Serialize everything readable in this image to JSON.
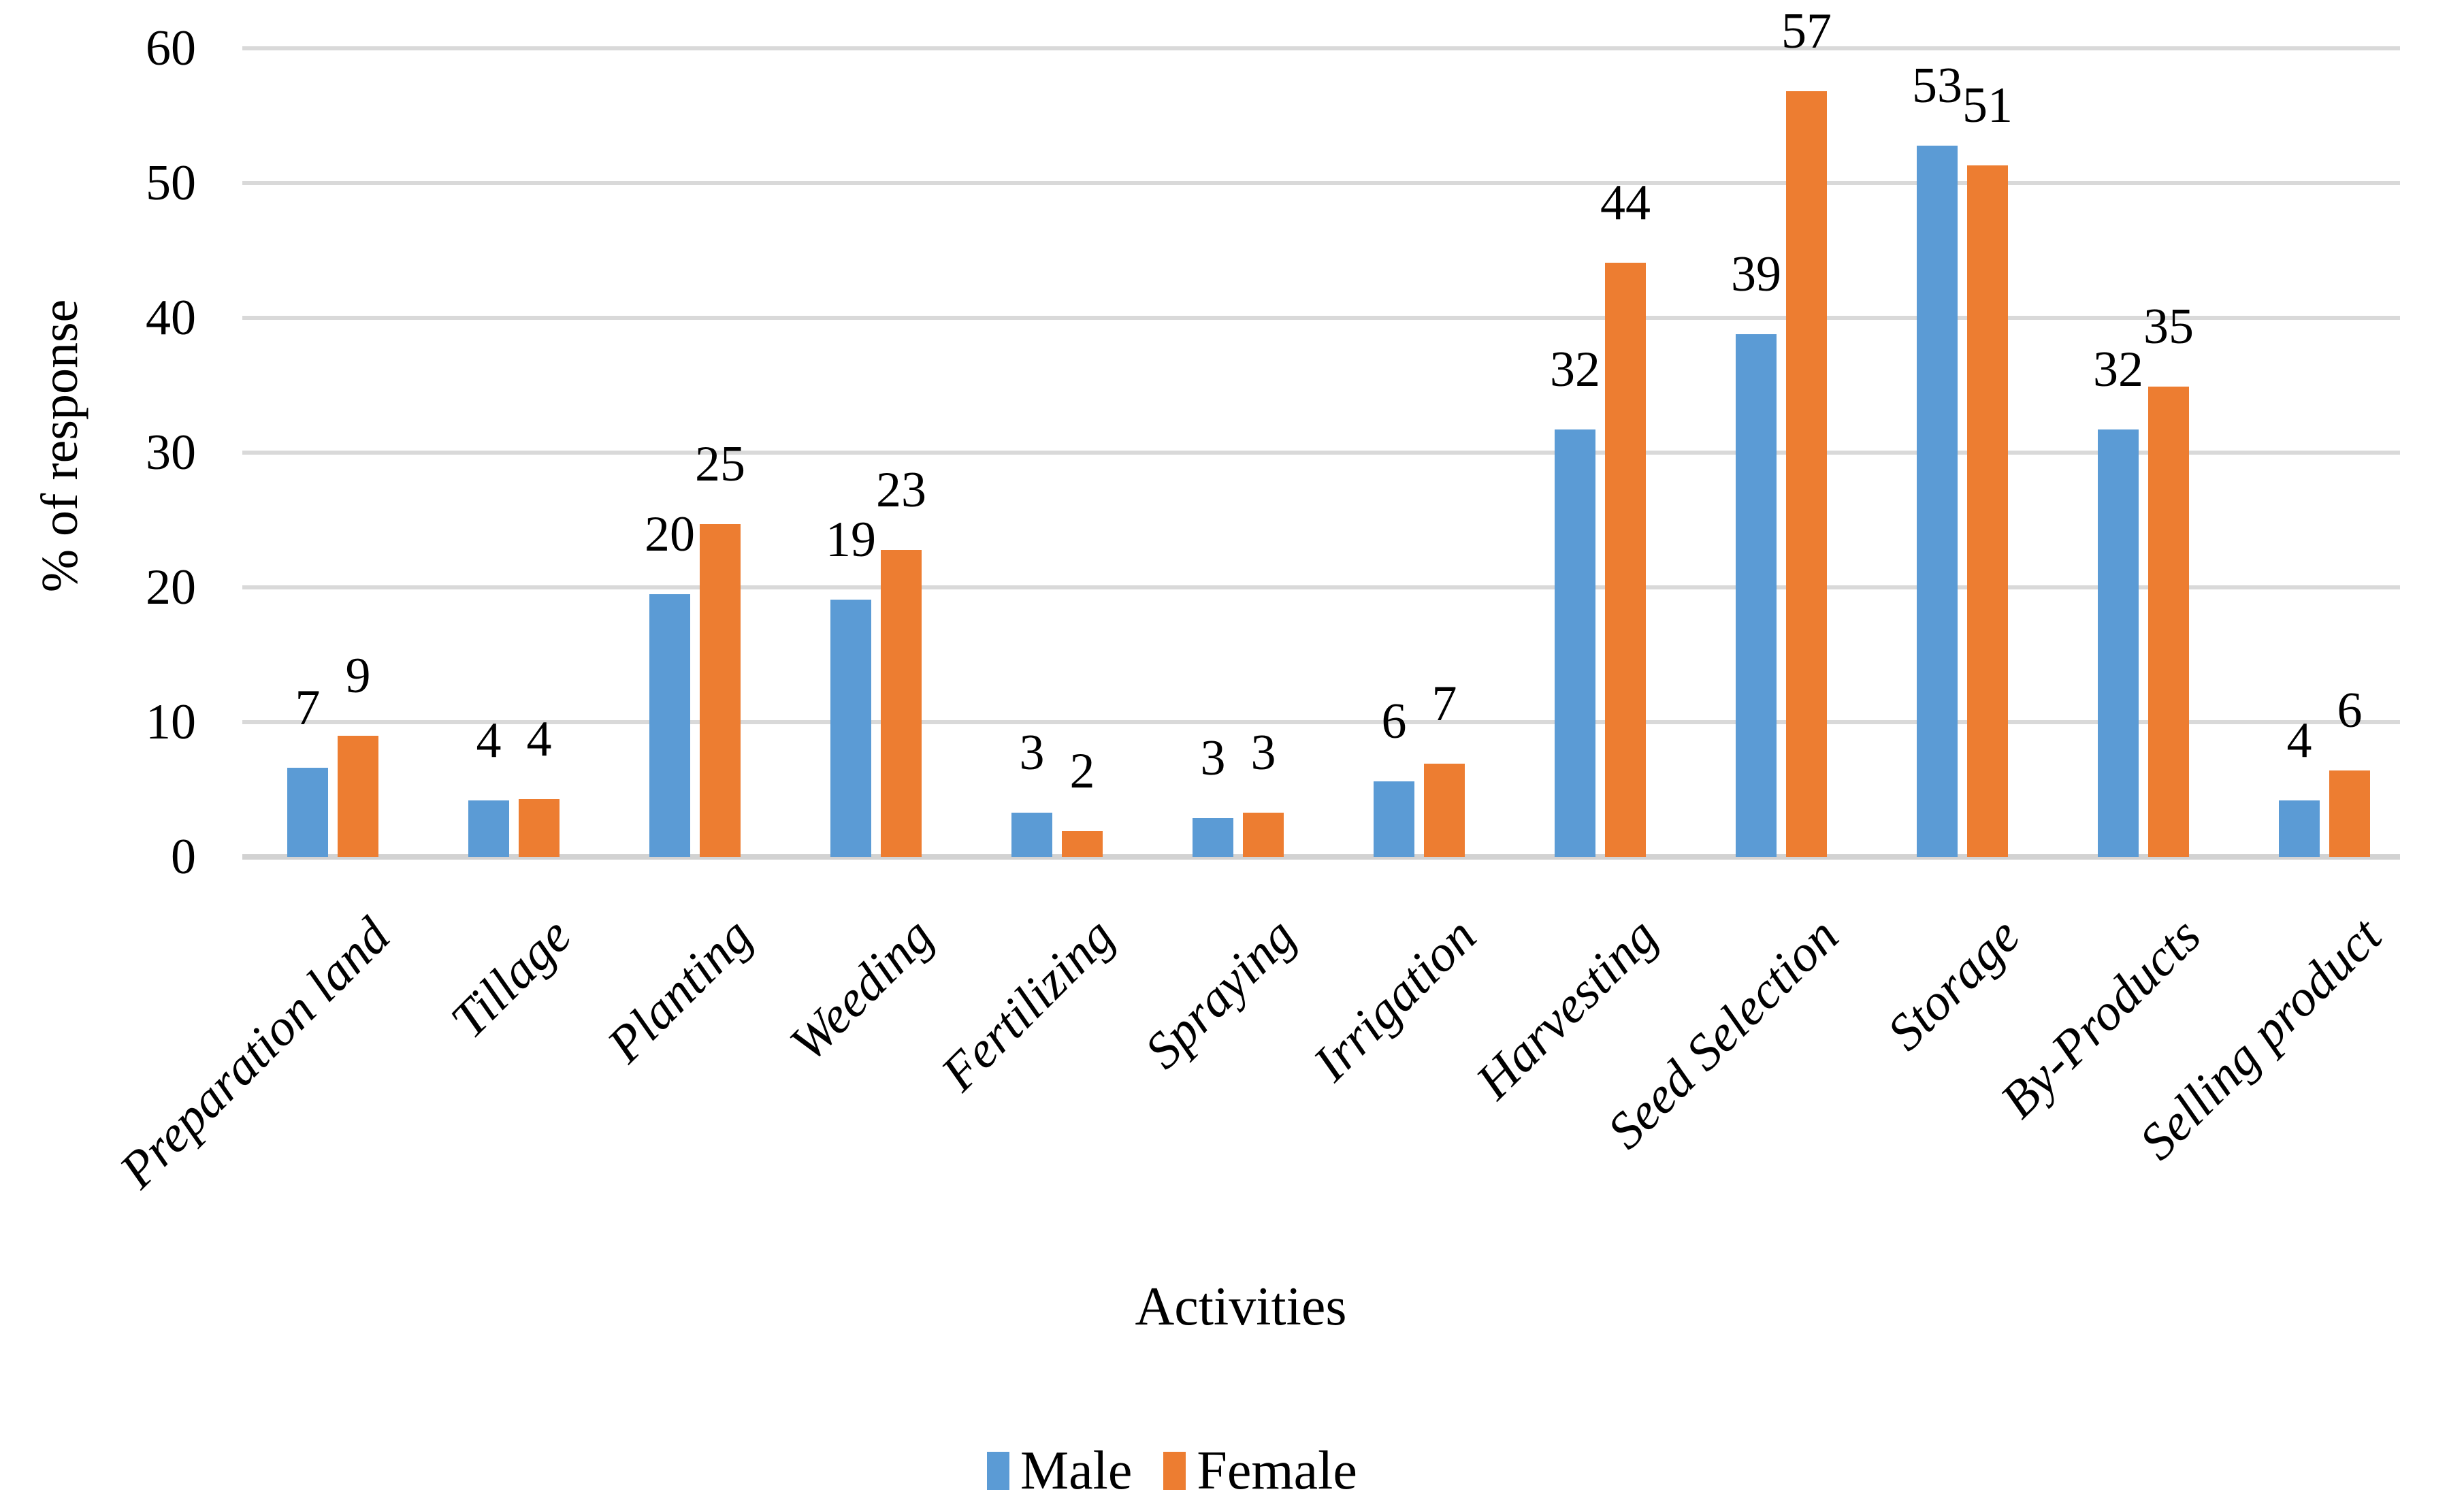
{
  "chart_data": {
    "type": "bar",
    "categories": [
      "Preparation land",
      "Tillage",
      "Planting",
      "Weeding",
      "Fertilizing",
      "Spraying",
      "Irrigation",
      "Harvesting",
      "Seed Selection",
      "Storage",
      "By-Products",
      "Selling product"
    ],
    "series": [
      {
        "name": "Male",
        "color": "#5B9BD5",
        "values": [
          6.6,
          4.2,
          19.5,
          19.1,
          3.3,
          2.9,
          5.6,
          31.7,
          38.8,
          52.8,
          31.7,
          4.2
        ],
        "data_labels": [
          "7",
          "4",
          "20",
          "19",
          "3",
          "3",
          "6",
          "32",
          "39",
          "53",
          "32",
          "4"
        ]
      },
      {
        "name": "Female",
        "color": "#ED7D31",
        "values": [
          9.0,
          4.3,
          24.7,
          22.8,
          1.9,
          3.3,
          6.9,
          44.1,
          56.8,
          51.3,
          34.9,
          6.4
        ],
        "data_labels": [
          "9",
          "4",
          "25",
          "23",
          "2",
          "3",
          "7",
          "44",
          "57",
          "51",
          "35",
          "6"
        ]
      }
    ],
    "xlabel": "Activities",
    "ylabel": "% of response",
    "ylim": [
      0,
      60
    ],
    "yticks": [
      0,
      10,
      20,
      30,
      40,
      50,
      60
    ],
    "grid": true,
    "legend_position": "bottom"
  },
  "style_colors": {
    "gridline": "#D9D9D9",
    "axis_line": "#D2D2D2",
    "text": "#000000",
    "background": "#FFFFFF"
  }
}
